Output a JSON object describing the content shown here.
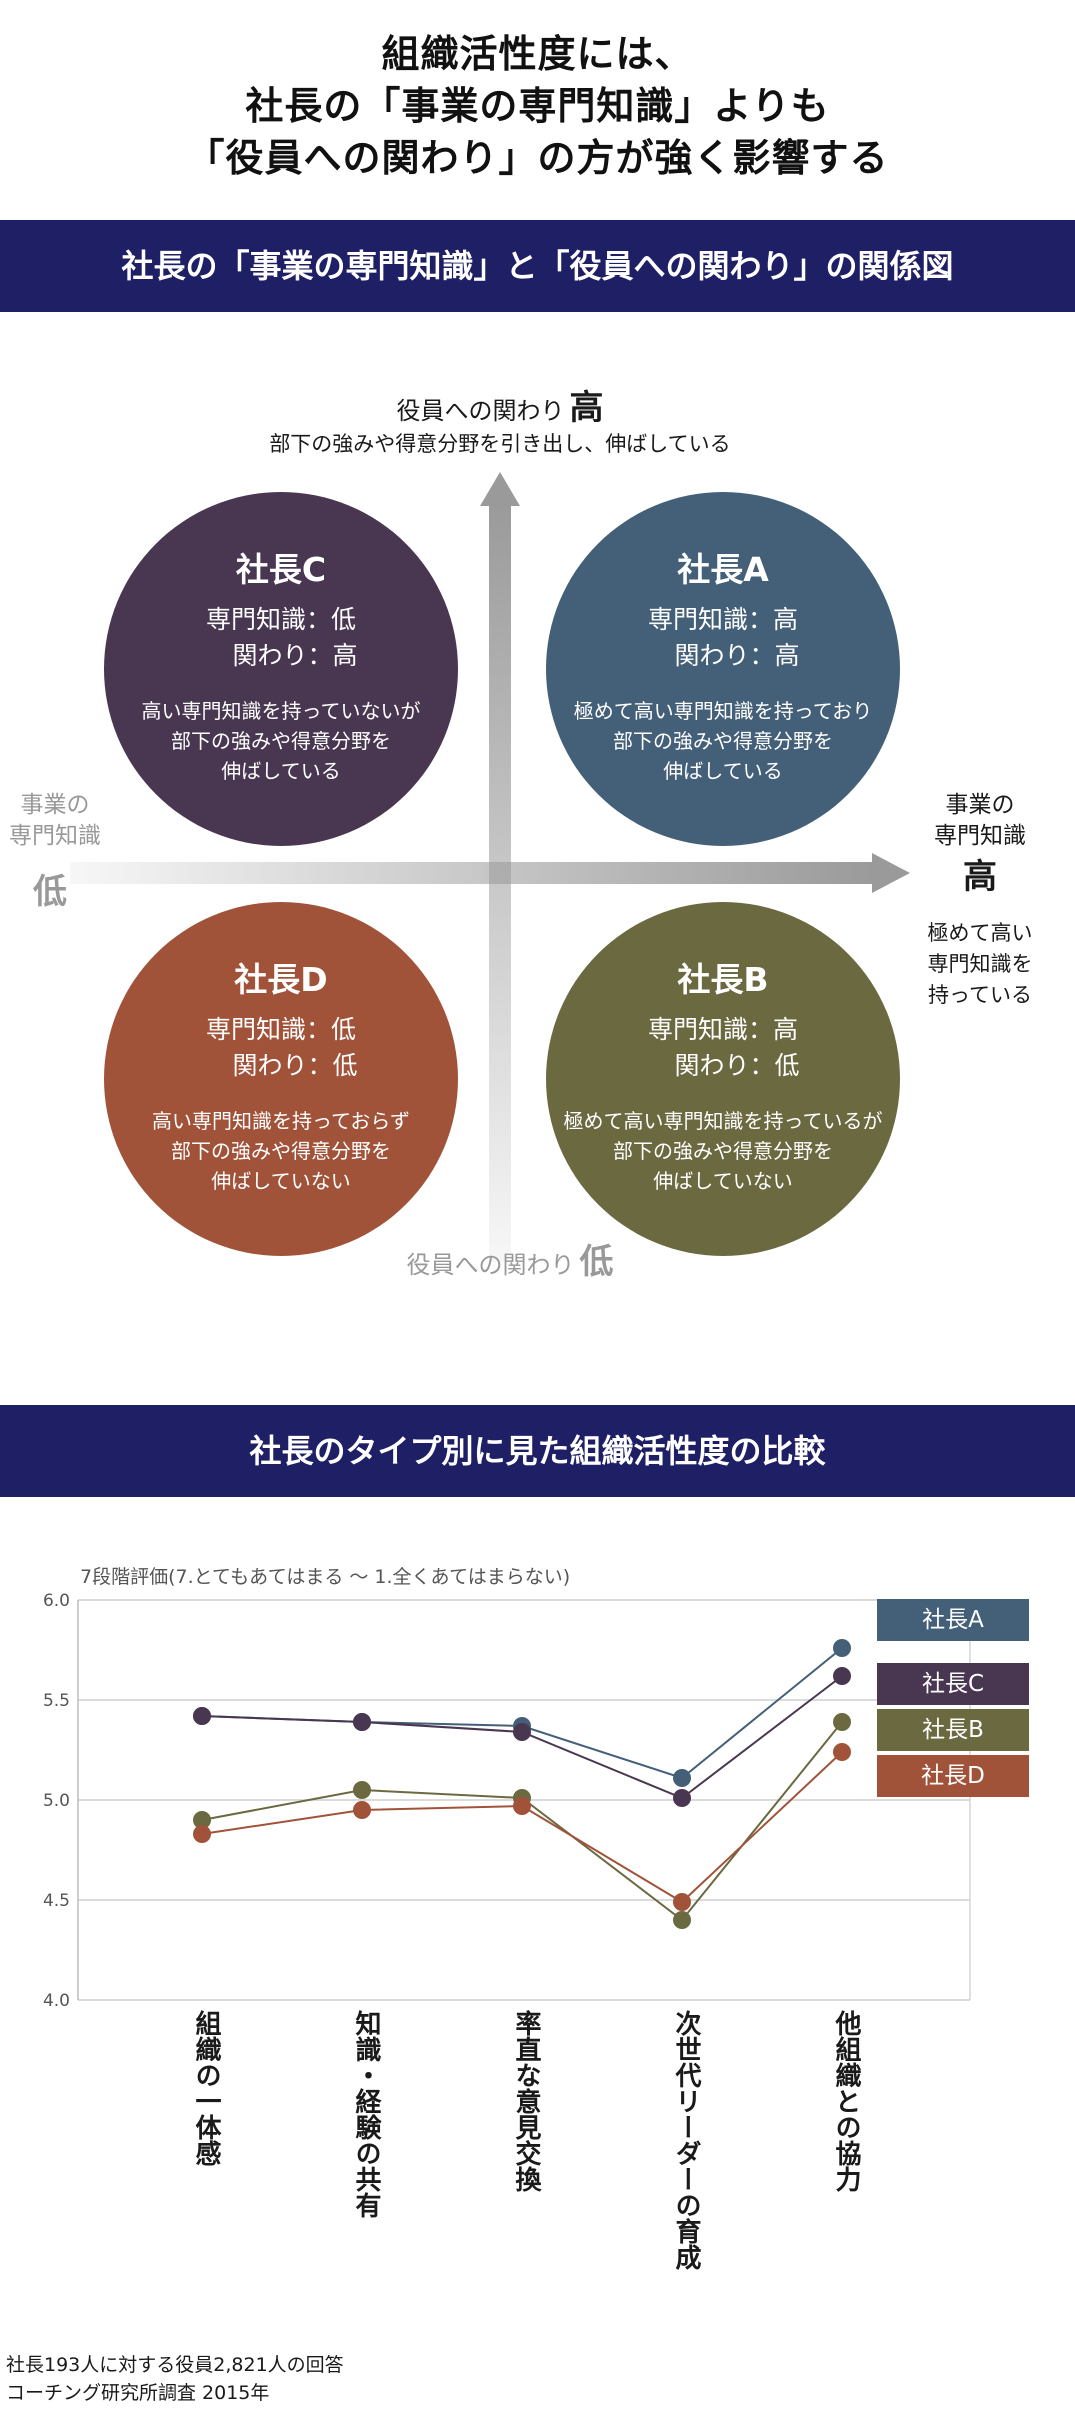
{
  "title": {
    "lines": [
      "組織活性度には、",
      "社長の「事業の専門知識」よりも",
      "「役員への関わり」の方が強く影響する"
    ]
  },
  "section1": {
    "band": "社長の「事業の専門知識」と「役員への関わり」の関係図"
  },
  "matrix": {
    "y_top_label": "役員への関わり",
    "y_top_level": "高",
    "y_top_desc": "部下の強みや得意分野を引き出し、伸ばしている",
    "y_bottom_label": "役員への関わり",
    "y_bottom_level": "低",
    "x_left_label_1": "事業の",
    "x_left_label_2": "専門知識",
    "x_left_level": "低",
    "x_right_label_1": "事業の",
    "x_right_label_2": "専門知識",
    "x_right_level": "高",
    "x_right_desc_1": "極めて高い",
    "x_right_desc_2": "専門知識を",
    "x_right_desc_3": "持っている",
    "quadrants": {
      "c": {
        "name": "社長C",
        "spec1": "専門知識：低",
        "spec2": "関わり：高",
        "desc1": "高い専門知識を持っていないが",
        "desc2": "部下の強みや得意分野を",
        "desc3": "伸ばしている",
        "color": "#493752"
      },
      "a": {
        "name": "社長A",
        "spec1": "専門知識：高",
        "spec2": "関わり：高",
        "desc1": "極めて高い専門知識を持っており",
        "desc2": "部下の強みや得意分野を",
        "desc3": "伸ばしている",
        "color": "#445f78"
      },
      "d": {
        "name": "社長D",
        "spec1": "専門知識：低",
        "spec2": "関わり：低",
        "desc1": "高い専門知識を持っておらず",
        "desc2": "部下の強みや得意分野を",
        "desc3": "伸ばしていない",
        "color": "#a1533a"
      },
      "b": {
        "name": "社長B",
        "spec1": "専門知識：高",
        "spec2": "関わり：低",
        "desc1": "極めて高い専門知識を持っているが",
        "desc2": "部下の強みや得意分野を",
        "desc3": "伸ばしていない",
        "color": "#6b6940"
      }
    }
  },
  "section2": {
    "band": "社長のタイプ別に見た組織活性度の比較"
  },
  "chart_data": {
    "type": "line",
    "subtitle": "7段階評価(7.とてもあてはまる ～ 1.全くあてはまらない)",
    "categories": [
      "組織の一体感",
      "知識・経験の共有",
      "率直な意見交換",
      "次世代リーダーの育成",
      "他組織との協力"
    ],
    "y_ticks": [
      "6.0",
      "5.5",
      "5.0",
      "4.5",
      "4.0"
    ],
    "ylim": [
      4.0,
      6.0
    ],
    "grid": true,
    "legend_position": "right",
    "series": [
      {
        "name": "社長A",
        "color": "#445f78",
        "values": [
          5.42,
          5.39,
          5.37,
          5.11,
          5.76
        ]
      },
      {
        "name": "社長C",
        "color": "#493752",
        "values": [
          5.42,
          5.39,
          5.34,
          5.01,
          5.62
        ]
      },
      {
        "name": "社長B",
        "color": "#6b6940",
        "values": [
          4.9,
          5.05,
          5.01,
          4.4,
          5.39
        ]
      },
      {
        "name": "社長D",
        "color": "#a1533a",
        "values": [
          4.83,
          4.95,
          4.97,
          4.49,
          5.24
        ]
      }
    ]
  },
  "footer": {
    "line1": "社長193人に対する役員2,821人の回答",
    "line2": "コーチング研究所調査 2015年"
  }
}
